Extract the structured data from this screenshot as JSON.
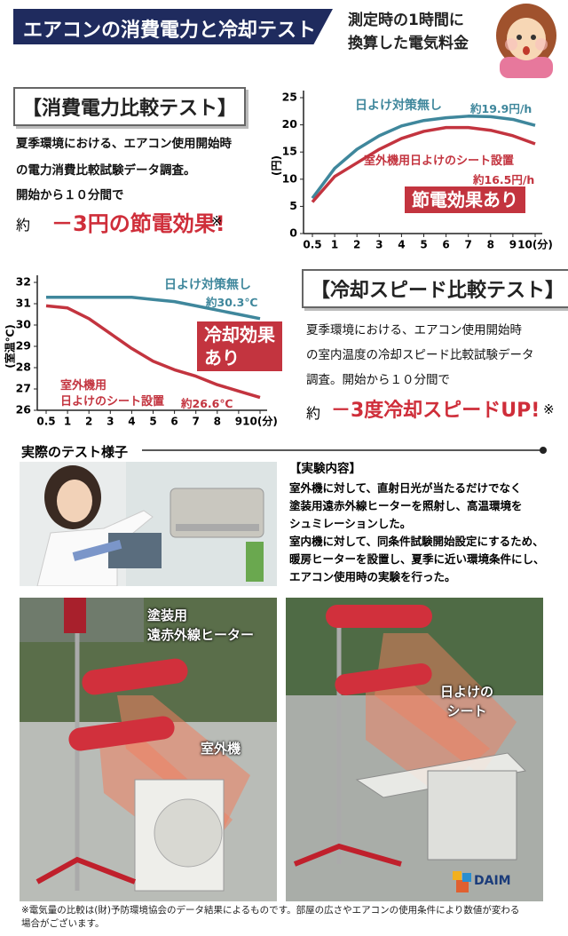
{
  "header": {
    "title": "エアコンの消費電力と冷却テスト",
    "note": "測定時の1時間に\n換算した電気料金"
  },
  "power_test": {
    "title": "【消費電力比較テスト】",
    "lines": [
      "夏季環境における、エアコン使用開始時",
      "の電力消費比較試験データ調査。",
      "開始から１０分間で"
    ],
    "result_prefix": "約",
    "result": "－3円の節電効果!",
    "mark": "※"
  },
  "chart_data": [
    {
      "type": "line",
      "y_label": "(円)",
      "categories": [
        "0.5",
        "1",
        "2",
        "3",
        "4",
        "5",
        "6",
        "7",
        "8",
        "9",
        "10(分)"
      ],
      "ylim": [
        0,
        25
      ],
      "yticks": [
        0,
        5,
        10,
        15,
        20,
        25
      ],
      "series": [
        {
          "name": "日よけ対策無し",
          "end_label": "約19.9円/h",
          "color": "#3f879c",
          "values": [
            6.5,
            12,
            15.5,
            18,
            19.8,
            20.8,
            21.3,
            21.6,
            21.5,
            21,
            19.9
          ]
        },
        {
          "name": "室外機用日よけのシート設置",
          "end_label": "約16.5円/h",
          "color": "#c3343f",
          "values": [
            5.8,
            10.5,
            13,
            15.5,
            17.5,
            18.8,
            19.5,
            19.5,
            19,
            18,
            16.5
          ]
        }
      ],
      "annotation": "節電効果あり"
    },
    {
      "type": "line",
      "y_label": "(室温℃)",
      "categories": [
        "0.5",
        "1",
        "2",
        "3",
        "4",
        "5",
        "6",
        "7",
        "8",
        "9",
        "10(分)"
      ],
      "ylim": [
        26,
        32
      ],
      "yticks": [
        26,
        27,
        28,
        29,
        30,
        31,
        32
      ],
      "series": [
        {
          "name": "日よけ対策無し",
          "end_label": "約30.3℃",
          "color": "#3f879c",
          "values": [
            31.3,
            31.3,
            31.3,
            31.3,
            31.3,
            31.2,
            31.1,
            30.9,
            30.7,
            30.5,
            30.3
          ]
        },
        {
          "name": "室外機用\n日よけのシート設置",
          "end_label": "約26.6℃",
          "color": "#c3343f",
          "values": [
            30.9,
            30.8,
            30.3,
            29.6,
            28.9,
            28.3,
            27.9,
            27.6,
            27.2,
            26.9,
            26.6
          ]
        }
      ],
      "annotation": "冷却効果\nあり"
    }
  ],
  "cooling_test": {
    "title": "【冷却スピード比較テスト】",
    "lines": [
      "夏季環境における、エアコン使用開始時",
      "の室内温度の冷却スピード比較試験データ",
      "調査。開始から１０分間で"
    ],
    "result_prefix": "約",
    "result": "－3度冷却スピードUP!",
    "mark": "※"
  },
  "test_scene": {
    "title": "実際のテスト様子",
    "content_title": "【実験内容】",
    "content_lines": [
      "室外機に対して、直射日光が当たるだけでなく",
      "塗装用遠赤外線ヒーターを照射し、高温環境を",
      "シュミレーションした。",
      "室内機に対して、同条件試験開始設定にするため、",
      "暖房ヒーターを設置し、夏季に近い環境条件にし、",
      "エアコン使用時の実験を行った。"
    ]
  },
  "photos": {
    "heater_label": "塗装用\n遠赤外線ヒーター",
    "unit_label": "室外機",
    "sheet_label": "日よけの\nシート",
    "logo": "DAIM"
  },
  "footnote": "※電気量の比較は(財)予防環境協会のデータ結果によるものです。部屋の広さやエアコンの使用条件により数値が変わる場合がございます。"
}
